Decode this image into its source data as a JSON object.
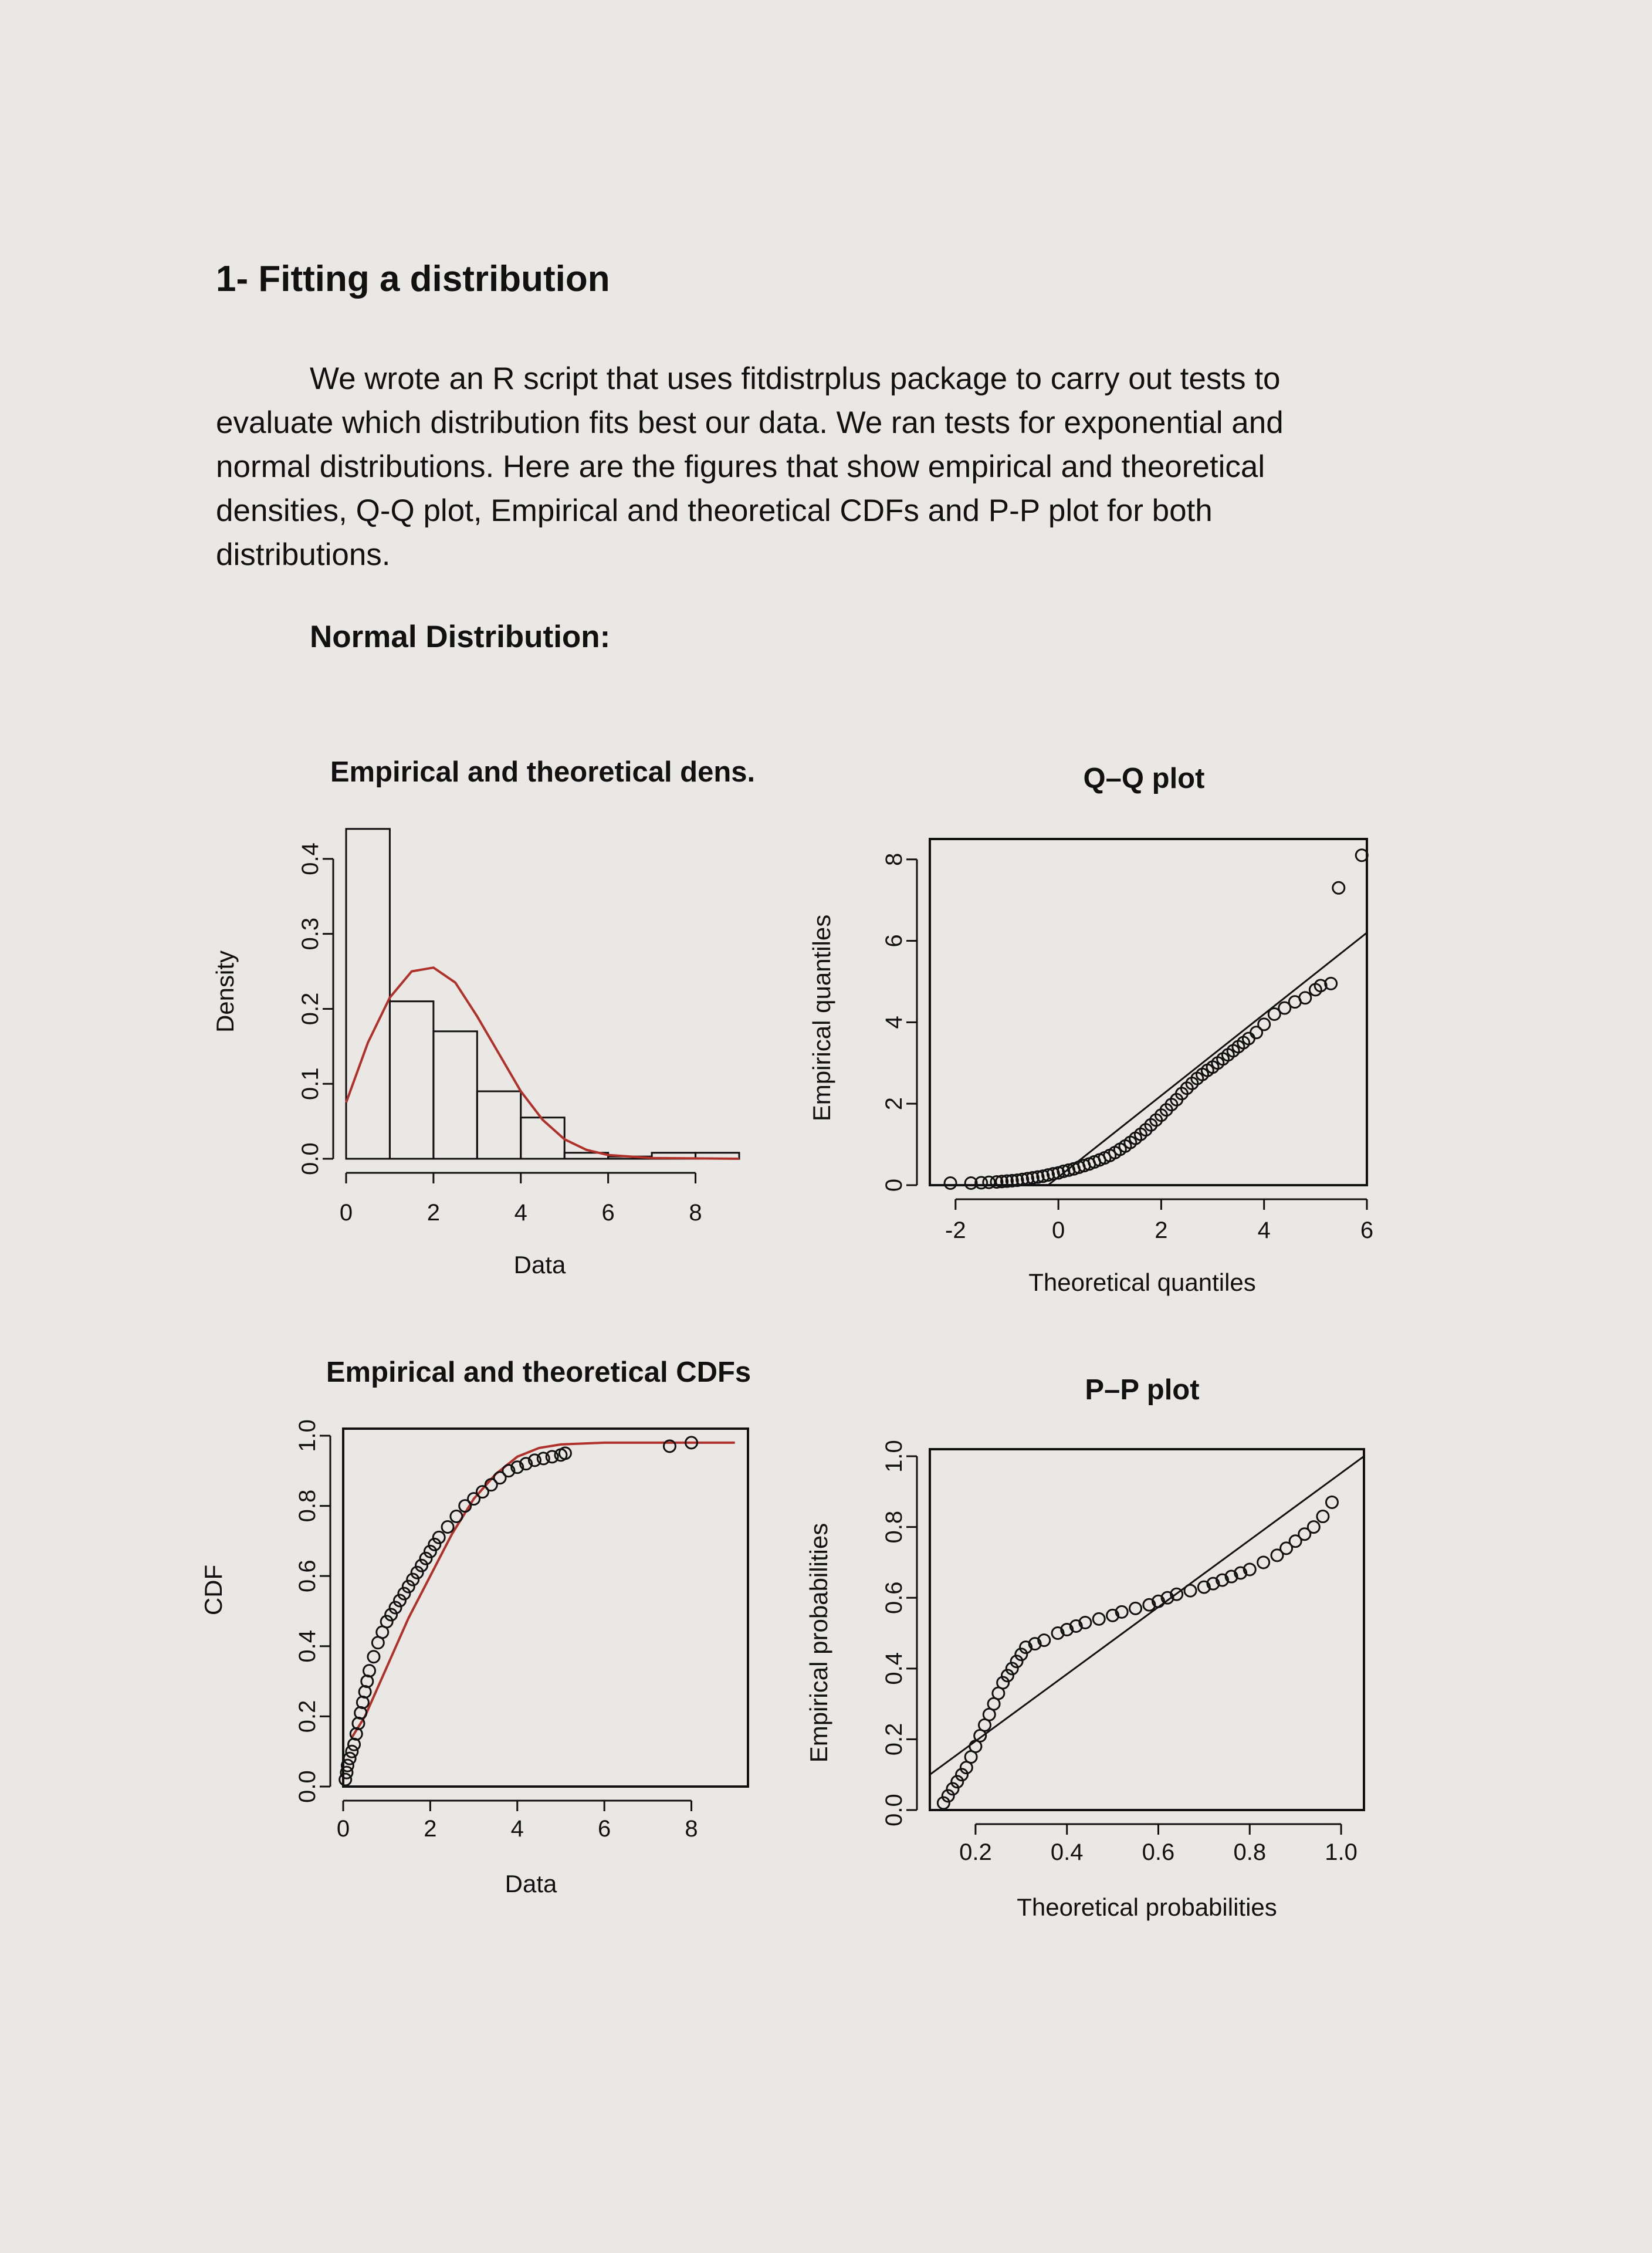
{
  "heading": "1- Fitting a distribution",
  "intro": "We wrote an R script that uses fitdistrplus package to carry out tests to evaluate which distribution fits best our data. We ran tests for exponential and normal distributions. Here are the figures that show empirical and theoretical densities, Q-Q plot, Empirical and theoretical CDFs and P-P plot for both distributions.",
  "subheading": "Normal Distribution:",
  "colors": {
    "paper": "#e9e8e5",
    "ink": "#111111",
    "theoretical_curve": "#b0302a"
  },
  "chart_data": [
    {
      "type": "bar",
      "title": "Empirical and theoretical dens.",
      "xlabel": "Data",
      "ylabel": "Density",
      "xlim": [
        0,
        9
      ],
      "ylim": [
        0,
        0.45
      ],
      "x_ticks": [
        "0",
        "2",
        "4",
        "6",
        "8"
      ],
      "y_ticks": [
        "0.0",
        "0.1",
        "0.2",
        "0.3",
        "0.4"
      ],
      "bins": [
        [
          0,
          1
        ],
        [
          1,
          2
        ],
        [
          2,
          3
        ],
        [
          3,
          4
        ],
        [
          4,
          5
        ],
        [
          5,
          6
        ],
        [
          6,
          7
        ],
        [
          7,
          8
        ],
        [
          8,
          9
        ]
      ],
      "values": [
        0.44,
        0.21,
        0.17,
        0.09,
        0.055,
        0.008,
        0.003,
        0.008,
        0.008
      ],
      "series": [
        {
          "type": "line",
          "values": [
            [
              0,
              0.075
            ],
            [
              0.5,
              0.155
            ],
            [
              1,
              0.215
            ],
            [
              1.5,
              0.25
            ],
            [
              2,
              0.255
            ],
            [
              2.5,
              0.235
            ],
            [
              3,
              0.19
            ],
            [
              3.5,
              0.14
            ],
            [
              4,
              0.09
            ],
            [
              4.5,
              0.052
            ],
            [
              5,
              0.026
            ],
            [
              5.5,
              0.012
            ],
            [
              6,
              0.005
            ],
            [
              7,
              0.001
            ],
            [
              9,
              0.0
            ]
          ]
        }
      ]
    },
    {
      "type": "scatter",
      "title": "Q–Q plot",
      "xlabel": "Theoretical quantiles",
      "ylabel": "Empirical quantiles",
      "xlim": [
        -2.5,
        6
      ],
      "ylim": [
        0,
        8.5
      ],
      "x_ticks": [
        "-2",
        "0",
        "2",
        "4",
        "6"
      ],
      "y_ticks": [
        "0",
        "2",
        "4",
        "6",
        "8"
      ],
      "points": [
        [
          -2.1,
          0.05
        ],
        [
          -1.7,
          0.05
        ],
        [
          -1.5,
          0.06
        ],
        [
          -1.35,
          0.07
        ],
        [
          -1.2,
          0.08
        ],
        [
          -1.1,
          0.09
        ],
        [
          -1.0,
          0.1
        ],
        [
          -0.9,
          0.11
        ],
        [
          -0.8,
          0.12
        ],
        [
          -0.7,
          0.14
        ],
        [
          -0.6,
          0.16
        ],
        [
          -0.5,
          0.18
        ],
        [
          -0.4,
          0.2
        ],
        [
          -0.3,
          0.22
        ],
        [
          -0.2,
          0.25
        ],
        [
          -0.1,
          0.28
        ],
        [
          0.0,
          0.3
        ],
        [
          0.1,
          0.34
        ],
        [
          0.2,
          0.37
        ],
        [
          0.3,
          0.4
        ],
        [
          0.4,
          0.44
        ],
        [
          0.5,
          0.48
        ],
        [
          0.6,
          0.52
        ],
        [
          0.7,
          0.57
        ],
        [
          0.8,
          0.62
        ],
        [
          0.9,
          0.67
        ],
        [
          1.0,
          0.73
        ],
        [
          1.1,
          0.8
        ],
        [
          1.2,
          0.88
        ],
        [
          1.3,
          0.96
        ],
        [
          1.4,
          1.05
        ],
        [
          1.5,
          1.15
        ],
        [
          1.6,
          1.25
        ],
        [
          1.7,
          1.36
        ],
        [
          1.8,
          1.48
        ],
        [
          1.9,
          1.6
        ],
        [
          2.0,
          1.72
        ],
        [
          2.1,
          1.85
        ],
        [
          2.2,
          1.98
        ],
        [
          2.3,
          2.1
        ],
        [
          2.4,
          2.25
        ],
        [
          2.5,
          2.38
        ],
        [
          2.6,
          2.5
        ],
        [
          2.7,
          2.62
        ],
        [
          2.8,
          2.72
        ],
        [
          2.9,
          2.82
        ],
        [
          3.0,
          2.9
        ],
        [
          3.1,
          3.0
        ],
        [
          3.2,
          3.1
        ],
        [
          3.3,
          3.2
        ],
        [
          3.4,
          3.3
        ],
        [
          3.5,
          3.4
        ],
        [
          3.6,
          3.5
        ],
        [
          3.7,
          3.6
        ],
        [
          3.85,
          3.75
        ],
        [
          4.0,
          3.95
        ],
        [
          4.2,
          4.2
        ],
        [
          4.4,
          4.35
        ],
        [
          4.6,
          4.5
        ],
        [
          4.8,
          4.6
        ],
        [
          5.0,
          4.8
        ],
        [
          5.1,
          4.9
        ],
        [
          5.3,
          4.95
        ],
        [
          5.45,
          7.3
        ],
        [
          5.9,
          8.1
        ]
      ],
      "reference_line": [
        [
          -0.2,
          0
        ],
        [
          6,
          6.2
        ]
      ]
    },
    {
      "type": "scatter",
      "title": "Empirical and theoretical CDFs",
      "xlabel": "Data",
      "ylabel": "CDF",
      "xlim": [
        0,
        9.3
      ],
      "ylim": [
        0,
        1.02
      ],
      "x_ticks": [
        "0",
        "2",
        "4",
        "6",
        "8"
      ],
      "y_ticks": [
        "0.0",
        "0.2",
        "0.4",
        "0.6",
        "0.8",
        "1.0"
      ],
      "points": [
        [
          0.05,
          0.02
        ],
        [
          0.08,
          0.04
        ],
        [
          0.1,
          0.06
        ],
        [
          0.15,
          0.08
        ],
        [
          0.2,
          0.1
        ],
        [
          0.25,
          0.12
        ],
        [
          0.3,
          0.15
        ],
        [
          0.35,
          0.18
        ],
        [
          0.4,
          0.21
        ],
        [
          0.45,
          0.24
        ],
        [
          0.5,
          0.27
        ],
        [
          0.55,
          0.3
        ],
        [
          0.6,
          0.33
        ],
        [
          0.7,
          0.37
        ],
        [
          0.8,
          0.41
        ],
        [
          0.9,
          0.44
        ],
        [
          1.0,
          0.47
        ],
        [
          1.1,
          0.49
        ],
        [
          1.2,
          0.51
        ],
        [
          1.3,
          0.53
        ],
        [
          1.4,
          0.55
        ],
        [
          1.5,
          0.57
        ],
        [
          1.6,
          0.59
        ],
        [
          1.7,
          0.61
        ],
        [
          1.8,
          0.63
        ],
        [
          1.9,
          0.65
        ],
        [
          2.0,
          0.67
        ],
        [
          2.1,
          0.69
        ],
        [
          2.2,
          0.71
        ],
        [
          2.4,
          0.74
        ],
        [
          2.6,
          0.77
        ],
        [
          2.8,
          0.8
        ],
        [
          3.0,
          0.82
        ],
        [
          3.2,
          0.84
        ],
        [
          3.4,
          0.86
        ],
        [
          3.6,
          0.88
        ],
        [
          3.8,
          0.9
        ],
        [
          4.0,
          0.91
        ],
        [
          4.2,
          0.92
        ],
        [
          4.4,
          0.93
        ],
        [
          4.6,
          0.935
        ],
        [
          4.8,
          0.94
        ],
        [
          5.0,
          0.945
        ],
        [
          5.1,
          0.95
        ],
        [
          7.5,
          0.97
        ],
        [
          8.0,
          0.98
        ]
      ],
      "series": [
        {
          "type": "line",
          "values": [
            [
              0.2,
              0.14
            ],
            [
              0.5,
              0.2
            ],
            [
              1.0,
              0.34
            ],
            [
              1.5,
              0.48
            ],
            [
              2.0,
              0.6
            ],
            [
              2.5,
              0.72
            ],
            [
              3.0,
              0.82
            ],
            [
              3.5,
              0.89
            ],
            [
              4.0,
              0.94
            ],
            [
              4.5,
              0.965
            ],
            [
              5.0,
              0.975
            ],
            [
              6.0,
              0.98
            ],
            [
              9.0,
              0.98
            ]
          ]
        }
      ]
    },
    {
      "type": "scatter",
      "title": "P–P plot",
      "xlabel": "Theoretical probabilities",
      "ylabel": "Empirical probabilities",
      "xlim": [
        0.1,
        1.05
      ],
      "ylim": [
        0,
        1.02
      ],
      "x_ticks": [
        "0.2",
        "0.4",
        "0.6",
        "0.8",
        "1.0"
      ],
      "y_ticks": [
        "0.0",
        "0.2",
        "0.4",
        "0.6",
        "0.8",
        "1.0"
      ],
      "points": [
        [
          0.13,
          0.02
        ],
        [
          0.14,
          0.04
        ],
        [
          0.15,
          0.06
        ],
        [
          0.16,
          0.08
        ],
        [
          0.17,
          0.1
        ],
        [
          0.18,
          0.12
        ],
        [
          0.19,
          0.15
        ],
        [
          0.2,
          0.18
        ],
        [
          0.21,
          0.21
        ],
        [
          0.22,
          0.24
        ],
        [
          0.23,
          0.27
        ],
        [
          0.24,
          0.3
        ],
        [
          0.25,
          0.33
        ],
        [
          0.26,
          0.36
        ],
        [
          0.27,
          0.38
        ],
        [
          0.28,
          0.4
        ],
        [
          0.29,
          0.42
        ],
        [
          0.3,
          0.44
        ],
        [
          0.31,
          0.46
        ],
        [
          0.33,
          0.47
        ],
        [
          0.35,
          0.48
        ],
        [
          0.38,
          0.5
        ],
        [
          0.4,
          0.51
        ],
        [
          0.42,
          0.52
        ],
        [
          0.44,
          0.53
        ],
        [
          0.47,
          0.54
        ],
        [
          0.5,
          0.55
        ],
        [
          0.52,
          0.56
        ],
        [
          0.55,
          0.57
        ],
        [
          0.58,
          0.58
        ],
        [
          0.6,
          0.59
        ],
        [
          0.62,
          0.6
        ],
        [
          0.64,
          0.61
        ],
        [
          0.67,
          0.62
        ],
        [
          0.7,
          0.63
        ],
        [
          0.72,
          0.64
        ],
        [
          0.74,
          0.65
        ],
        [
          0.76,
          0.66
        ],
        [
          0.78,
          0.67
        ],
        [
          0.8,
          0.68
        ],
        [
          0.83,
          0.7
        ],
        [
          0.86,
          0.72
        ],
        [
          0.88,
          0.74
        ],
        [
          0.9,
          0.76
        ],
        [
          0.92,
          0.78
        ],
        [
          0.94,
          0.8
        ],
        [
          0.96,
          0.83
        ],
        [
          0.98,
          0.87
        ]
      ],
      "reference_line": [
        [
          0.1,
          0.1
        ],
        [
          1.05,
          1.0
        ]
      ]
    }
  ]
}
